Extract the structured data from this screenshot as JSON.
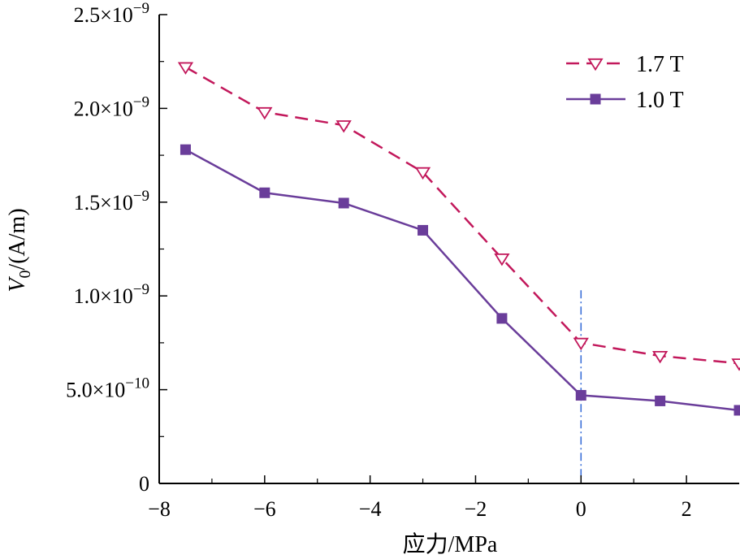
{
  "chart_data": {
    "type": "line",
    "xlabel": "应力/MPa",
    "ylabel": {
      "main": "V",
      "sub": "0",
      "unit": "/(A/m)"
    },
    "xlim": [
      -8,
      3
    ],
    "ylim": [
      0,
      2.5e-09
    ],
    "xticks": [
      -8,
      -6,
      -4,
      -2,
      0,
      2
    ],
    "xtick_labels": [
      "−8",
      "−6",
      "−4",
      "−2",
      "0",
      "2"
    ],
    "yticks": [
      {
        "value": 0,
        "mant": "0",
        "exp": ""
      },
      {
        "value": 5e-10,
        "mant": "5.0×10",
        "exp": "−10"
      },
      {
        "value": 1e-09,
        "mant": "1.0×10",
        "exp": "−9"
      },
      {
        "value": 1.5e-09,
        "mant": "1.5×10",
        "exp": "−9"
      },
      {
        "value": 2e-09,
        "mant": "2.0×10",
        "exp": "−9"
      },
      {
        "value": 2.5e-09,
        "mant": "2.5×10",
        "exp": "−9"
      }
    ],
    "reference_line_x": 0,
    "legend_position": "top-right",
    "series": [
      {
        "name": "1.7 T",
        "color": "#c2185b",
        "style": "dashed",
        "marker": "open-down-triangle",
        "x": [
          -7.5,
          -6,
          -4.5,
          -3,
          -1.5,
          0,
          1.5,
          3
        ],
        "y": [
          2.22e-09,
          1.98e-09,
          1.91e-09,
          1.66e-09,
          1.2e-09,
          7.5e-10,
          6.8e-10,
          6.4e-10
        ]
      },
      {
        "name": "1.0 T",
        "color": "#6a3d9a",
        "style": "solid",
        "marker": "filled-square",
        "x": [
          -7.5,
          -6,
          -4.5,
          -3,
          -1.5,
          0,
          1.5,
          3
        ],
        "y": [
          1.78e-09,
          1.55e-09,
          1.495e-09,
          1.35e-09,
          8.8e-10,
          4.7e-10,
          4.4e-10,
          3.9e-10
        ]
      }
    ],
    "colors": {
      "axis": "#000000",
      "reference_line": "#3a6fd8"
    }
  }
}
